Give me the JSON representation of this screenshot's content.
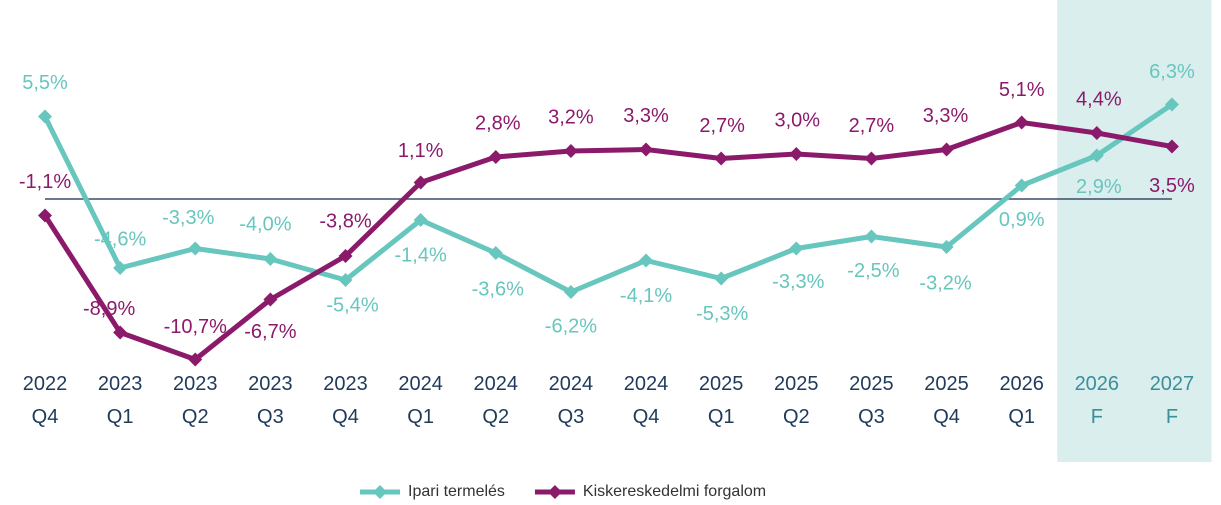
{
  "chart_data": {
    "type": "line",
    "categories": [
      "2022 Q4",
      "2023 Q1",
      "2023 Q2",
      "2023 Q3",
      "2023 Q4",
      "2024 Q1",
      "2024 Q2",
      "2024 Q3",
      "2024 Q4",
      "2025 Q1",
      "2025 Q2",
      "2025 Q3",
      "2025 Q4",
      "2026 Q1",
      "2026 F",
      "2027 F"
    ],
    "series": [
      {
        "name": "Ipari termelés",
        "color": "#67c6bd",
        "values": [
          5.5,
          -4.6,
          -3.3,
          -4.0,
          -5.4,
          -1.4,
          -3.6,
          -6.2,
          -4.1,
          -5.3,
          -3.3,
          -2.5,
          -3.2,
          0.9,
          2.9,
          6.3
        ],
        "value_labels": [
          "5,5%",
          "-4,6%",
          "-3,3%",
          "-4,0%",
          "-5,4%",
          "-1,4%",
          "-3,6%",
          "-6,2%",
          "-4,1%",
          "-5,3%",
          "-3,3%",
          "-2,5%",
          "-3,2%",
          "0,9%",
          "2,9%",
          "6,3%"
        ]
      },
      {
        "name": "Kiskereskedelmi forgalom",
        "color": "#8b1a6b",
        "values": [
          -1.1,
          -8.9,
          -10.7,
          -6.7,
          -3.8,
          1.1,
          2.8,
          3.2,
          3.3,
          2.7,
          3.0,
          2.7,
          3.3,
          5.1,
          4.4,
          3.5
        ],
        "value_labels": [
          "-1,1%",
          "-8,9%",
          "-10,7%",
          "-6,7%",
          "-3,8%",
          "1,1%",
          "2,8%",
          "3,2%",
          "3,3%",
          "2,7%",
          "3,0%",
          "2,7%",
          "3,3%",
          "5,1%",
          "4,4%",
          "3,5%"
        ]
      }
    ],
    "ylim": [
      -12,
      8
    ],
    "legend": "bottom",
    "highlight": {
      "from_index": 14,
      "color": "#daeeee",
      "label_color": "#3a8f9a"
    }
  }
}
